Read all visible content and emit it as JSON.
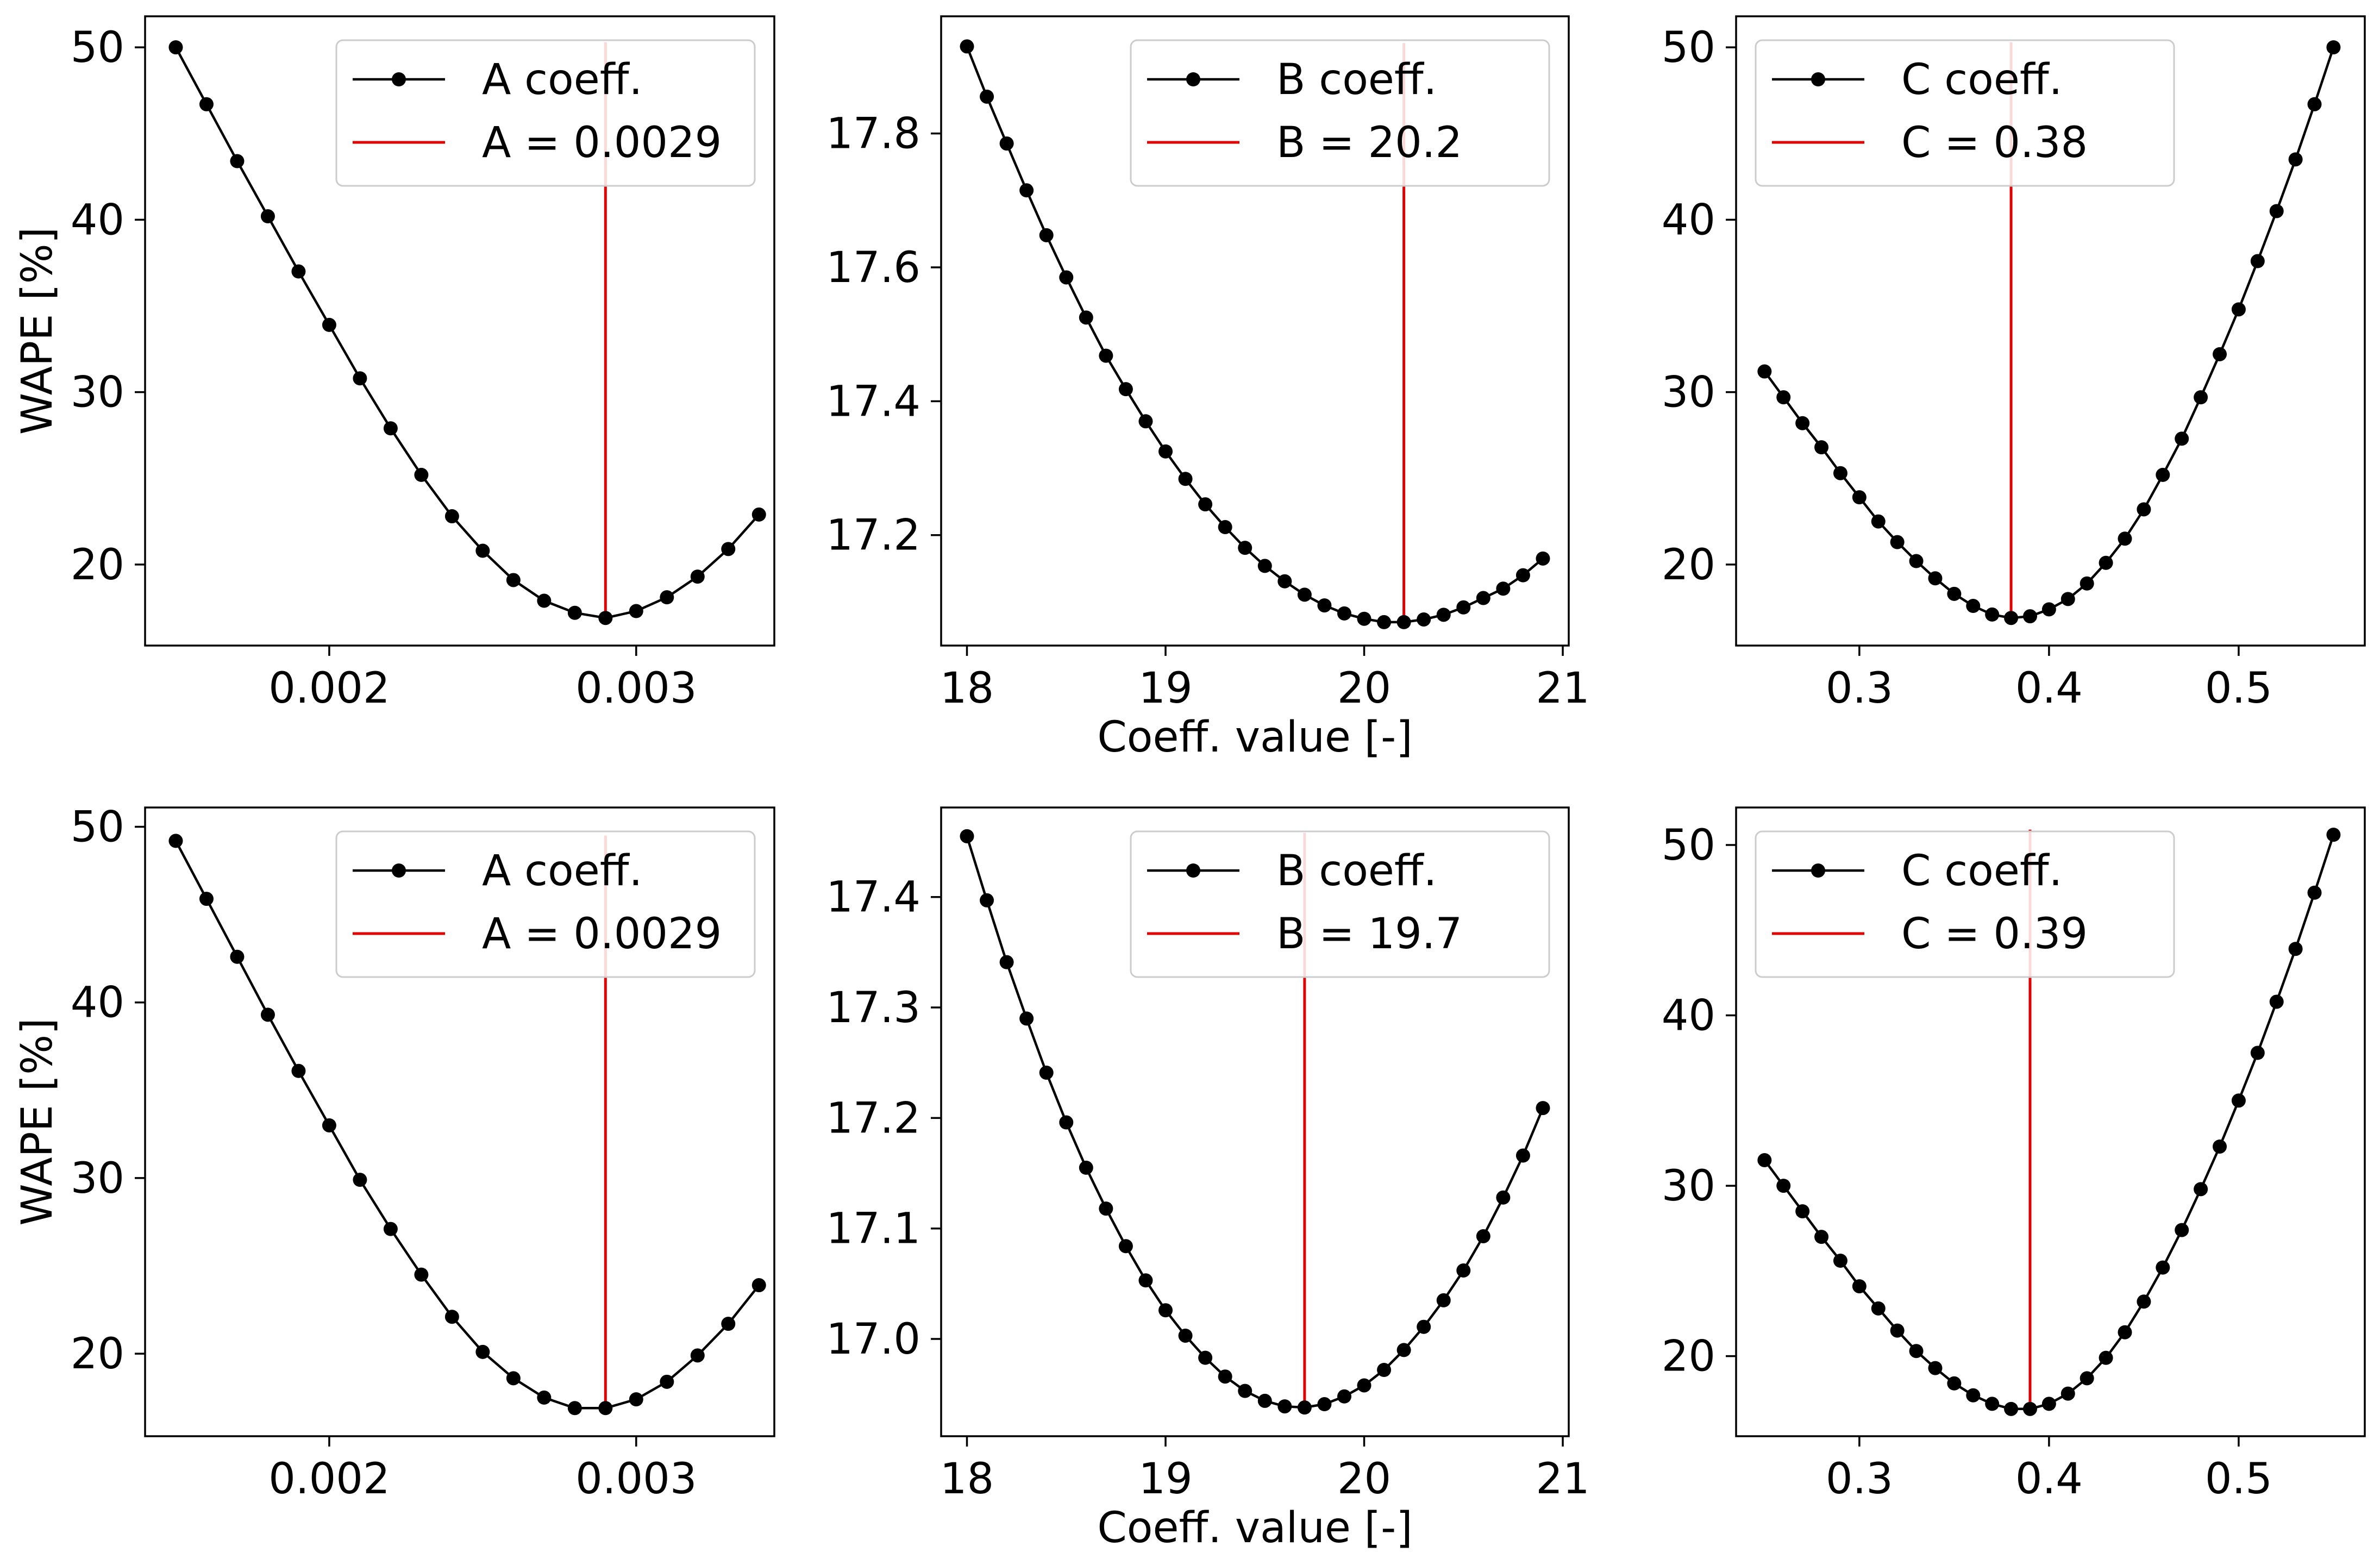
{
  "figure": {
    "ylabel": "WAPE [%]",
    "xlabel": "Coeff. value [-]",
    "colors": {
      "series": "#000000",
      "optimum": "#e00000",
      "axes": "#000000",
      "background": "#ffffff"
    }
  },
  "chart_data": [
    {
      "type": "line",
      "xlim": [
        0.0014,
        0.00345
      ],
      "ylim": [
        15.3,
        51.8
      ],
      "xticks": [
        0.002,
        0.003
      ],
      "xtick_labels": [
        "0.002",
        "0.003"
      ],
      "yticks": [
        20,
        30,
        40,
        50
      ],
      "ytick_labels": [
        "20",
        "30",
        "40",
        "50"
      ],
      "xlabel": "",
      "ylabel": "WAPE [%]",
      "legend_position": "upper right",
      "series": [
        {
          "name": "A coeff.",
          "x": [
            0.0015,
            0.0016,
            0.0017,
            0.0018,
            0.0019,
            0.002,
            0.0021,
            0.0022,
            0.0023,
            0.0024,
            0.0025,
            0.0026,
            0.0027,
            0.0028,
            0.0029,
            0.003,
            0.0031,
            0.0032,
            0.0033,
            0.0034
          ],
          "y": [
            50.0,
            46.7,
            43.4,
            40.2,
            37.0,
            33.9,
            30.8,
            27.9,
            25.2,
            22.8,
            20.8,
            19.1,
            17.9,
            17.2,
            16.9,
            17.3,
            18.1,
            19.3,
            20.9,
            22.9
          ]
        }
      ],
      "optimum": {
        "label": "A = 0.0029",
        "x": 0.0029,
        "y_from": 16.9,
        "y_to": 50.3
      }
    },
    {
      "type": "line",
      "xlim": [
        17.87,
        21.03
      ],
      "ylim": [
        17.035,
        17.975
      ],
      "xticks": [
        18,
        19,
        20,
        21
      ],
      "xtick_labels": [
        "18",
        "19",
        "20",
        "21"
      ],
      "yticks": [
        17.2,
        17.4,
        17.6,
        17.8
      ],
      "ytick_labels": [
        "17.2",
        "17.4",
        "17.6",
        "17.8"
      ],
      "xlabel": "Coeff. value [-]",
      "ylabel": "",
      "legend_position": "upper right",
      "series": [
        {
          "name": "B coeff.",
          "x": [
            18.0,
            18.1,
            18.2,
            18.3,
            18.4,
            18.5,
            18.6,
            18.7,
            18.8,
            18.9,
            19.0,
            19.1,
            19.2,
            19.3,
            19.4,
            19.5,
            19.6,
            19.7,
            19.8,
            19.9,
            20.0,
            20.1,
            20.2,
            20.3,
            20.4,
            20.5,
            20.6,
            20.7,
            20.8,
            20.9
          ],
          "y": [
            17.93,
            17.855,
            17.785,
            17.715,
            17.648,
            17.585,
            17.525,
            17.468,
            17.418,
            17.37,
            17.325,
            17.284,
            17.246,
            17.212,
            17.181,
            17.154,
            17.131,
            17.111,
            17.095,
            17.083,
            17.075,
            17.07,
            17.07,
            17.074,
            17.081,
            17.092,
            17.106,
            17.12,
            17.14,
            17.165
          ]
        }
      ],
      "optimum": {
        "label": "B = 20.2",
        "x": 20.2,
        "y_from": 17.07,
        "y_to": 17.935
      }
    },
    {
      "type": "line",
      "xlim": [
        0.235,
        0.5665
      ],
      "ylim": [
        15.3,
        51.8
      ],
      "xticks": [
        0.3,
        0.4,
        0.5
      ],
      "xtick_labels": [
        "0.3",
        "0.4",
        "0.5"
      ],
      "yticks": [
        20,
        30,
        40,
        50
      ],
      "ytick_labels": [
        "20",
        "30",
        "40",
        "50"
      ],
      "xlabel": "",
      "ylabel": "",
      "legend_position": "upper left",
      "series": [
        {
          "name": "C coeff.",
          "x": [
            0.25,
            0.26,
            0.27,
            0.28,
            0.29,
            0.3,
            0.31,
            0.32,
            0.33,
            0.34,
            0.35,
            0.36,
            0.37,
            0.38,
            0.39,
            0.4,
            0.41,
            0.42,
            0.43,
            0.44,
            0.45,
            0.46,
            0.47,
            0.48,
            0.49,
            0.5,
            0.51,
            0.52,
            0.53,
            0.54,
            0.55
          ],
          "y": [
            31.2,
            29.7,
            28.2,
            26.8,
            25.3,
            23.9,
            22.5,
            21.3,
            20.2,
            19.2,
            18.3,
            17.6,
            17.1,
            16.9,
            17.0,
            17.4,
            18.0,
            18.9,
            20.1,
            21.5,
            23.2,
            25.2,
            27.3,
            29.7,
            32.2,
            34.8,
            37.6,
            40.5,
            43.5,
            46.7,
            50.0
          ]
        }
      ],
      "optimum": {
        "label": "C = 0.38",
        "x": 0.38,
        "y_from": 16.9,
        "y_to": 50.3
      }
    },
    {
      "type": "line",
      "xlim": [
        0.0014,
        0.00345
      ],
      "ylim": [
        15.3,
        51.1
      ],
      "xticks": [
        0.002,
        0.003
      ],
      "xtick_labels": [
        "0.002",
        "0.003"
      ],
      "yticks": [
        20,
        30,
        40,
        50
      ],
      "ytick_labels": [
        "20",
        "30",
        "40",
        "50"
      ],
      "xlabel": "",
      "ylabel": "WAPE [%]",
      "legend_position": "upper right",
      "series": [
        {
          "name": "A coeff.",
          "x": [
            0.0015,
            0.0016,
            0.0017,
            0.0018,
            0.0019,
            0.002,
            0.0021,
            0.0022,
            0.0023,
            0.0024,
            0.0025,
            0.0026,
            0.0027,
            0.0028,
            0.0029,
            0.003,
            0.0031,
            0.0032,
            0.0033,
            0.0034
          ],
          "y": [
            49.2,
            45.9,
            42.6,
            39.3,
            36.1,
            33.0,
            29.9,
            27.1,
            24.5,
            22.1,
            20.1,
            18.6,
            17.5,
            16.9,
            16.9,
            17.4,
            18.4,
            19.9,
            21.7,
            23.9
          ]
        }
      ],
      "optimum": {
        "label": "A = 0.0029",
        "x": 0.0029,
        "y_from": 16.9,
        "y_to": 49.5
      }
    },
    {
      "type": "line",
      "xlim": [
        17.87,
        21.03
      ],
      "ylim": [
        16.912,
        17.481
      ],
      "xticks": [
        18,
        19,
        20,
        21
      ],
      "xtick_labels": [
        "18",
        "19",
        "20",
        "21"
      ],
      "yticks": [
        17.0,
        17.1,
        17.2,
        17.3,
        17.4
      ],
      "ytick_labels": [
        "17.0",
        "17.1",
        "17.2",
        "17.3",
        "17.4"
      ],
      "xlabel": "Coeff. value [-]",
      "ylabel": "",
      "legend_position": "upper right",
      "series": [
        {
          "name": "B coeff.",
          "x": [
            18.0,
            18.1,
            18.2,
            18.3,
            18.4,
            18.5,
            18.6,
            18.7,
            18.8,
            18.9,
            19.0,
            19.1,
            19.2,
            19.3,
            19.4,
            19.5,
            19.6,
            19.7,
            19.8,
            19.9,
            20.0,
            20.1,
            20.2,
            20.3,
            20.4,
            20.5,
            20.6,
            20.7,
            20.8,
            20.9
          ],
          "y": [
            17.455,
            17.397,
            17.341,
            17.29,
            17.241,
            17.196,
            17.155,
            17.118,
            17.084,
            17.053,
            17.026,
            17.003,
            16.983,
            16.966,
            16.953,
            16.944,
            16.939,
            16.938,
            16.941,
            16.948,
            16.958,
            16.972,
            16.99,
            17.011,
            17.035,
            17.062,
            17.093,
            17.128,
            17.166,
            17.209
          ]
        }
      ],
      "optimum": {
        "label": "B = 19.7",
        "x": 19.7,
        "y_from": 16.938,
        "y_to": 17.458
      }
    },
    {
      "type": "line",
      "xlim": [
        0.235,
        0.5665
      ],
      "ylim": [
        15.3,
        52.2
      ],
      "xticks": [
        0.3,
        0.4,
        0.5
      ],
      "xtick_labels": [
        "0.3",
        "0.4",
        "0.5"
      ],
      "yticks": [
        20,
        30,
        40,
        50
      ],
      "ytick_labels": [
        "20",
        "30",
        "40",
        "50"
      ],
      "xlabel": "",
      "ylabel": "",
      "legend_position": "upper left",
      "series": [
        {
          "name": "C coeff.",
          "x": [
            0.25,
            0.26,
            0.27,
            0.28,
            0.29,
            0.3,
            0.31,
            0.32,
            0.33,
            0.34,
            0.35,
            0.36,
            0.37,
            0.38,
            0.39,
            0.4,
            0.41,
            0.42,
            0.43,
            0.44,
            0.45,
            0.46,
            0.47,
            0.48,
            0.49,
            0.5,
            0.51,
            0.52,
            0.53,
            0.54,
            0.55
          ],
          "y": [
            31.5,
            30.0,
            28.5,
            27.0,
            25.6,
            24.1,
            22.8,
            21.5,
            20.3,
            19.3,
            18.4,
            17.7,
            17.2,
            16.9,
            16.9,
            17.2,
            17.8,
            18.7,
            19.9,
            21.4,
            23.2,
            25.2,
            27.4,
            29.8,
            32.3,
            35.0,
            37.8,
            40.8,
            43.9,
            47.2,
            50.6
          ]
        }
      ],
      "optimum": {
        "label": "C = 0.39",
        "x": 0.39,
        "y_from": 16.9,
        "y_to": 50.9
      }
    }
  ]
}
